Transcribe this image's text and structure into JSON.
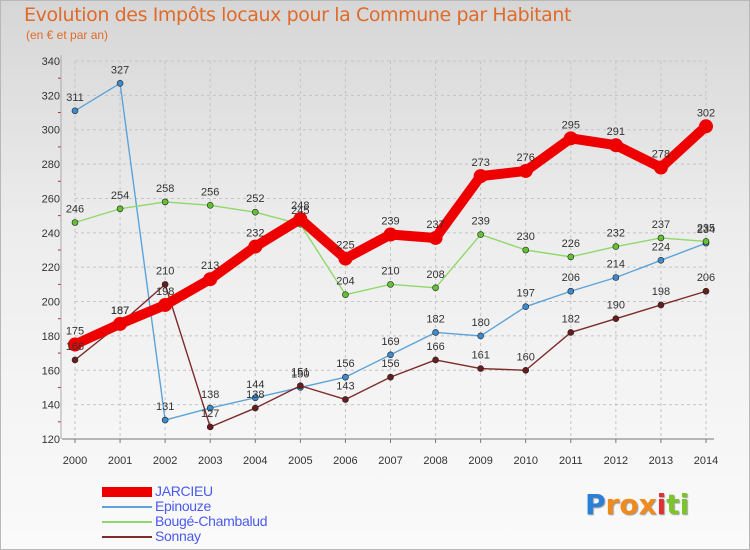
{
  "brand": {
    "letters": [
      "P",
      "r",
      "o",
      "x",
      "i",
      "t",
      "i"
    ],
    "colors": [
      "#2a7fd8",
      "#f08a1c",
      "#f08a1c",
      "#f08a1c",
      "#e23030",
      "#7bc52b",
      "#7bc52b"
    ]
  },
  "chart_data": {
    "type": "line",
    "title": "Evolution des Impôts locaux pour la Commune par Habitant",
    "subtitle": "(en € et par an)",
    "xlabel": "",
    "ylabel": "",
    "x": [
      "2000",
      "2001",
      "2002",
      "2003",
      "2004",
      "2005",
      "2006",
      "2007",
      "2008",
      "2009",
      "2010",
      "2011",
      "2012",
      "2013",
      "2014"
    ],
    "ylim": [
      120,
      340
    ],
    "yticks": [
      "120",
      "140",
      "160",
      "180",
      "200",
      "220",
      "240",
      "260",
      "280",
      "300",
      "320",
      "340"
    ],
    "grid": true,
    "legend_position": "bottom-left",
    "series": [
      {
        "name": "Epinouze",
        "color": "#5ba3d9",
        "marker": "#3d8bcf",
        "values": [
          311,
          327,
          131,
          138,
          144,
          150,
          156,
          169,
          182,
          180,
          197,
          206,
          214,
          224,
          234
        ],
        "labels": [
          "311",
          "327",
          "131",
          "138",
          "144",
          "150",
          "156",
          "169",
          "182",
          "180",
          "197",
          "206",
          "214",
          "224",
          "234"
        ]
      },
      {
        "name": "Bougé-Chambalud",
        "color": "#8fd86a",
        "marker": "#62c232",
        "values": [
          246,
          254,
          258,
          256,
          252,
          245,
          204,
          210,
          208,
          239,
          230,
          226,
          232,
          237,
          235
        ],
        "labels": [
          "246",
          "254",
          "258",
          "256",
          "252",
          "245",
          "204",
          "210",
          "208",
          "239",
          "230",
          "226",
          "232",
          "237",
          "235"
        ]
      },
      {
        "name": "Sonnay",
        "color": "#7e2b2b",
        "marker": "#6a1c1c",
        "values": [
          166,
          187,
          210,
          127,
          138,
          151,
          143,
          156,
          166,
          161,
          160,
          182,
          190,
          198,
          206
        ],
        "labels": [
          "166",
          "187",
          "210",
          "127",
          "138",
          "151",
          "143",
          "156",
          "166",
          "161",
          "160",
          "182",
          "190",
          "198",
          "206"
        ]
      },
      {
        "name": "JARCIEU",
        "color": "#ee0000",
        "marker": "#ee0000",
        "values": [
          175,
          187,
          198,
          213,
          232,
          248,
          225,
          239,
          237,
          273,
          276,
          295,
          291,
          278,
          302
        ],
        "labels": [
          "175",
          "187",
          "198",
          "213",
          "232",
          "248",
          "225",
          "239",
          "237",
          "273",
          "276",
          "295",
          "291",
          "278",
          "302"
        ]
      }
    ],
    "legend_order": [
      3,
      0,
      1,
      2
    ]
  }
}
